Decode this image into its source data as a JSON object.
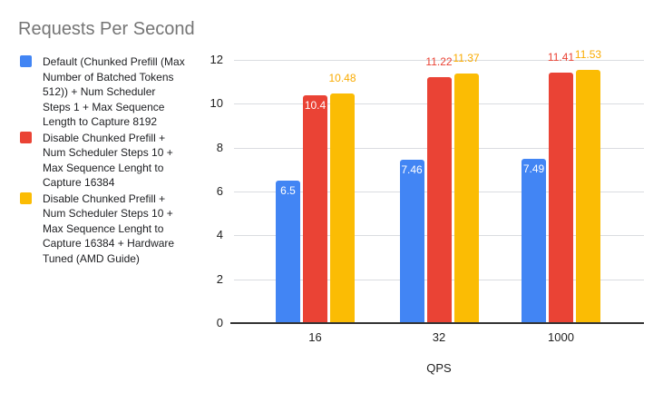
{
  "title": "Requests Per Second",
  "colors": {
    "blue": "#4285F4",
    "red": "#EA4335",
    "yellow": "#FBBC04",
    "title_text": "#757575",
    "legend_text": "#202124",
    "axis_text": "#1F1F1F",
    "gridline": "#DADCE0",
    "axis_line": "#333333",
    "inside_label_text": "#FFFFFF",
    "yellow_label_text": "#F9AB00",
    "background": "#FFFFFF"
  },
  "legend": {
    "items": [
      {
        "key": "default-chunked-prefill",
        "color": "#4285F4",
        "swatch": "blue-square",
        "lines": [
          "Default (Chunked Prefill (Max",
          "Number of Batched Tokens",
          "512)) + Num Scheduler",
          "Steps 1 + Max Sequence",
          "Length to Capture 8192"
        ]
      },
      {
        "key": "disable-chunked-prefill",
        "color": "#EA4335",
        "swatch": "red-square",
        "lines": [
          "Disable Chunked Prefill +",
          "Num Scheduler Steps 10 +",
          "Max Sequence Lenght to",
          "Capture 16384"
        ]
      },
      {
        "key": "disable-chunked-prefill-hardware-tuned",
        "color": "#FBBC04",
        "swatch": "yellow-square",
        "lines": [
          "Disable Chunked Prefill +",
          "Num Scheduler Steps 10 +",
          "Max Sequence Lenght to",
          "Capture 16384 + Hardware",
          "Tuned (AMD Guide)"
        ]
      }
    ]
  },
  "chart_data": {
    "type": "bar",
    "title": "Requests Per Second",
    "categories": [
      "16",
      "32",
      "1000"
    ],
    "xlabel": "QPS",
    "ylabel": "",
    "ylim": [
      0,
      12
    ],
    "yticks": [
      0,
      2,
      4,
      6,
      8,
      10,
      12
    ],
    "grid": true,
    "legend_position": "left",
    "series": [
      {
        "name": "Default (Chunked Prefill (Max Number of Batched Tokens 512)) + Num Scheduler Steps 1 + Max Sequence Length to Capture 8192",
        "color": "#4285F4",
        "values": [
          6.5,
          7.46,
          7.49
        ],
        "labels": [
          "6.5",
          "7.46",
          "7.49"
        ],
        "label_placement": [
          "inside",
          "inside",
          "inside"
        ],
        "label_colors": [
          "#FFFFFF",
          "#FFFFFF",
          "#FFFFFF"
        ]
      },
      {
        "name": "Disable Chunked Prefill + Num Scheduler Steps 10 + Max Sequence Lenght to Capture 16384",
        "color": "#EA4335",
        "values": [
          10.4,
          11.22,
          11.41
        ],
        "labels": [
          "10.4",
          "11.22",
          "11.41"
        ],
        "label_placement": [
          "inside",
          "outside",
          "outside"
        ],
        "label_colors": [
          "#FFFFFF",
          "#EA4335",
          "#EA4335"
        ]
      },
      {
        "name": "Disable Chunked Prefill + Num Scheduler Steps 10 + Max Sequence Lenght to Capture 16384 + Hardware Tuned (AMD Guide)",
        "color": "#FBBC04",
        "values": [
          10.48,
          11.37,
          11.53
        ],
        "labels": [
          "10.48",
          "11.37",
          "11.53"
        ],
        "label_placement": [
          "outside",
          "outside",
          "outside"
        ],
        "label_colors": [
          "#F9AB00",
          "#F9AB00",
          "#F9AB00"
        ]
      }
    ]
  }
}
